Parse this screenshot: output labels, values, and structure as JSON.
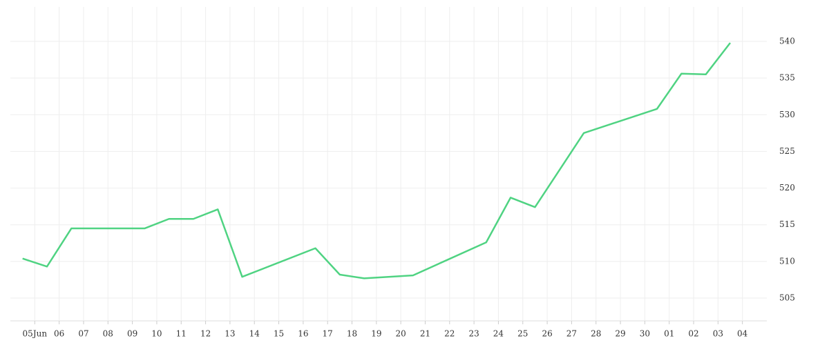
{
  "chart_data": {
    "type": "line",
    "x": [
      -0.5,
      0.5,
      1.5,
      2.5,
      3.5,
      4.5,
      5.5,
      6.5,
      7.5,
      8.5,
      11.5,
      12.5,
      13.5,
      15.5,
      18.5,
      19.5,
      20.5,
      22.5,
      25.5,
      26.5,
      27.5,
      28.5
    ],
    "series": [
      {
        "color": "#4fd382",
        "values": [
          510.4,
          509.3,
          514.5,
          514.5,
          514.5,
          514.5,
          515.8,
          515.8,
          517.1,
          507.9,
          511.8,
          508.2,
          507.7,
          508.1,
          512.6,
          518.7,
          517.4,
          527.5,
          530.8,
          535.6,
          535.5,
          539.8
        ]
      }
    ],
    "xlim": [
      -1,
      30
    ],
    "xticks": [
      {
        "value": 0,
        "label": "05Jun"
      },
      {
        "value": 1,
        "label": "06"
      },
      {
        "value": 2,
        "label": "07"
      },
      {
        "value": 3,
        "label": "08"
      },
      {
        "value": 4,
        "label": "09"
      },
      {
        "value": 5,
        "label": "10"
      },
      {
        "value": 6,
        "label": "11"
      },
      {
        "value": 7,
        "label": "12"
      },
      {
        "value": 8,
        "label": "13"
      },
      {
        "value": 9,
        "label": "14"
      },
      {
        "value": 10,
        "label": "15"
      },
      {
        "value": 11,
        "label": "16"
      },
      {
        "value": 12,
        "label": "17"
      },
      {
        "value": 13,
        "label": "18"
      },
      {
        "value": 14,
        "label": "19"
      },
      {
        "value": 15,
        "label": "20"
      },
      {
        "value": 16,
        "label": "21"
      },
      {
        "value": 17,
        "label": "22"
      },
      {
        "value": 18,
        "label": "23"
      },
      {
        "value": 19,
        "label": "24"
      },
      {
        "value": 20,
        "label": "25"
      },
      {
        "value": 21,
        "label": "26"
      },
      {
        "value": 22,
        "label": "27"
      },
      {
        "value": 23,
        "label": "28"
      },
      {
        "value": 24,
        "label": "29"
      },
      {
        "value": 25,
        "label": "30"
      },
      {
        "value": 26,
        "label": "01"
      },
      {
        "value": 27,
        "label": "02"
      },
      {
        "value": 28,
        "label": "03"
      },
      {
        "value": 29,
        "label": "04"
      }
    ],
    "ylim": [
      501.9,
      544.7
    ],
    "yticks": [
      505,
      510,
      515,
      520,
      525,
      530,
      535,
      540
    ],
    "grid": true
  }
}
